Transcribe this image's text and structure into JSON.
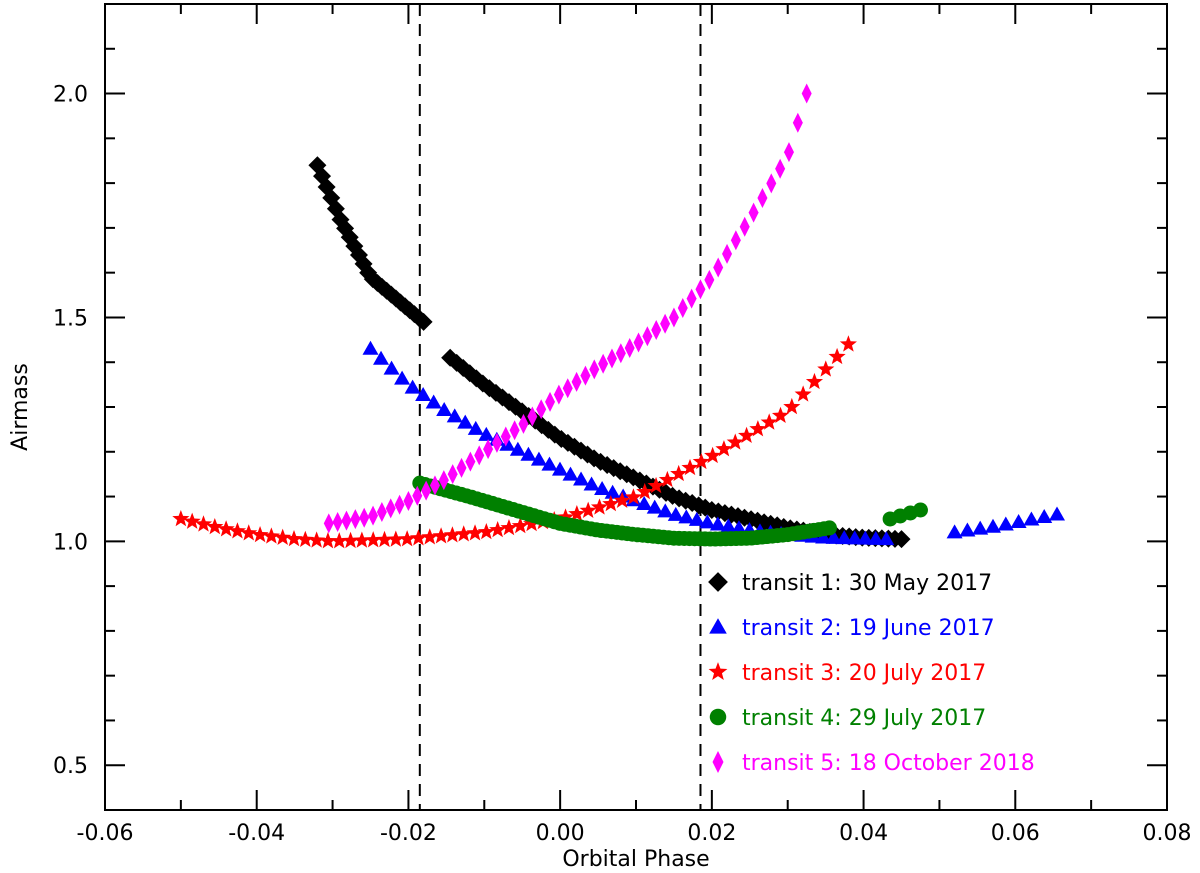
{
  "chart_data": {
    "type": "scatter",
    "xlabel": "Orbital Phase",
    "ylabel": "Airmass",
    "xlim": [
      -0.06,
      0.08
    ],
    "ylim": [
      0.4,
      2.2
    ],
    "x_ticks": [
      -0.06,
      -0.04,
      -0.02,
      0.0,
      0.02,
      0.04,
      0.06,
      0.08
    ],
    "x_tick_labels": [
      "-0.06",
      "-0.04",
      "-0.02",
      "0.00",
      "0.02",
      "0.04",
      "0.06",
      "0.08"
    ],
    "y_ticks": [
      0.5,
      1.0,
      1.5,
      2.0
    ],
    "y_tick_labels": [
      "0.5",
      "1.0",
      "1.5",
      "2.0"
    ],
    "vertical_dashed_lines": [
      -0.0185,
      0.0185
    ],
    "legend_position": "bottom-right",
    "series": [
      {
        "name": "transit 1:  30 May 2017",
        "color": "#000000",
        "marker": "diamond",
        "segments": [
          {
            "x_start": -0.032,
            "x_end": -0.018,
            "count": 24,
            "points": [
              [
                -0.032,
                1.84
              ],
              [
                -0.029,
                1.72
              ],
              [
                -0.025,
                1.59
              ],
              [
                -0.018,
                1.49
              ]
            ]
          },
          {
            "x_start": -0.0145,
            "x_end": 0.045,
            "count": 70,
            "points": [
              [
                -0.0145,
                1.41
              ],
              [
                -0.01,
                1.35
              ],
              [
                -0.005,
                1.29
              ],
              [
                0.0,
                1.23
              ],
              [
                0.005,
                1.18
              ],
              [
                0.01,
                1.14
              ],
              [
                0.015,
                1.1
              ],
              [
                0.02,
                1.07
              ],
              [
                0.025,
                1.05
              ],
              [
                0.03,
                1.03
              ],
              [
                0.035,
                1.015
              ],
              [
                0.04,
                1.008
              ],
              [
                0.045,
                1.005
              ]
            ]
          }
        ]
      },
      {
        "name": "transit 2:  19 June 2017",
        "color": "#0000ff",
        "marker": "triangle",
        "segments": [
          {
            "x_start": -0.025,
            "x_end": 0.043,
            "count": 50,
            "points": [
              [
                -0.025,
                1.43
              ],
              [
                -0.02,
                1.35
              ],
              [
                -0.015,
                1.29
              ],
              [
                -0.01,
                1.24
              ],
              [
                -0.005,
                1.2
              ],
              [
                0.0,
                1.16
              ],
              [
                0.005,
                1.12
              ],
              [
                0.01,
                1.09
              ],
              [
                0.015,
                1.06
              ],
              [
                0.02,
                1.04
              ],
              [
                0.025,
                1.025
              ],
              [
                0.03,
                1.015
              ],
              [
                0.035,
                1.008
              ],
              [
                0.043,
                1.005
              ]
            ]
          },
          {
            "x_start": 0.052,
            "x_end": 0.0655,
            "count": 9,
            "points": [
              [
                0.052,
                1.02
              ],
              [
                0.058,
                1.035
              ],
              [
                0.0655,
                1.06
              ]
            ]
          }
        ]
      },
      {
        "name": "transit 3:  20 July 2017",
        "color": "#ff0000",
        "marker": "star",
        "segments": [
          {
            "x_start": -0.05,
            "x_end": 0.038,
            "count": 60,
            "points": [
              [
                -0.05,
                1.05
              ],
              [
                -0.045,
                1.03
              ],
              [
                -0.04,
                1.015
              ],
              [
                -0.035,
                1.005
              ],
              [
                -0.03,
                1.0
              ],
              [
                -0.02,
                1.005
              ],
              [
                -0.01,
                1.02
              ],
              [
                0.0,
                1.05
              ],
              [
                0.01,
                1.1
              ],
              [
                0.02,
                1.19
              ],
              [
                0.03,
                1.29
              ],
              [
                0.038,
                1.44
              ]
            ]
          }
        ]
      },
      {
        "name": "transit 4:  29 July 2017",
        "color": "#008000",
        "marker": "circle",
        "segments": [
          {
            "x_start": -0.0185,
            "x_end": 0.0355,
            "count": 80,
            "points": [
              [
                -0.0185,
                1.13
              ],
              [
                -0.012,
                1.1
              ],
              [
                -0.005,
                1.065
              ],
              [
                0.0,
                1.04
              ],
              [
                0.005,
                1.025
              ],
              [
                0.01,
                1.015
              ],
              [
                0.015,
                1.007
              ],
              [
                0.02,
                1.005
              ],
              [
                0.025,
                1.007
              ],
              [
                0.03,
                1.015
              ],
              [
                0.0355,
                1.03
              ]
            ]
          },
          {
            "x_start": 0.0435,
            "x_end": 0.0475,
            "count": 4,
            "points": [
              [
                0.0435,
                1.05
              ],
              [
                0.0475,
                1.07
              ]
            ]
          }
        ]
      },
      {
        "name": "transit 5:  18 October 2018",
        "color": "#ff00ff",
        "marker": "thin-diamond",
        "segments": [
          {
            "x_start": -0.0305,
            "x_end": 0.0325,
            "count": 55,
            "points": [
              [
                -0.0305,
                1.04
              ],
              [
                -0.025,
                1.055
              ],
              [
                -0.02,
                1.09
              ],
              [
                -0.015,
                1.14
              ],
              [
                -0.01,
                1.2
              ],
              [
                -0.005,
                1.26
              ],
              [
                0.0,
                1.33
              ],
              [
                0.005,
                1.39
              ],
              [
                0.01,
                1.44
              ],
              [
                0.015,
                1.5
              ],
              [
                0.02,
                1.59
              ],
              [
                0.025,
                1.72
              ],
              [
                0.03,
                1.86
              ],
              [
                0.0325,
                2.0
              ]
            ]
          }
        ]
      }
    ]
  }
}
